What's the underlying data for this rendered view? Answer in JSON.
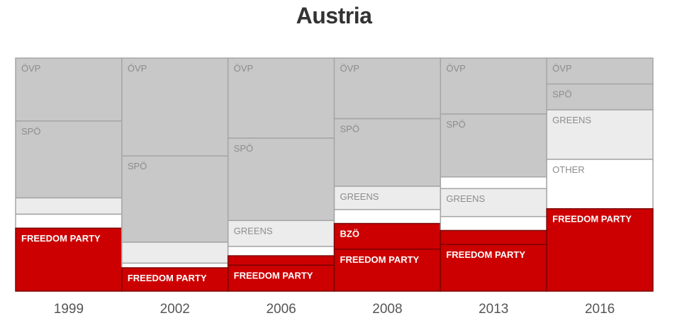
{
  "chart_data": {
    "type": "stacked-bar",
    "title": "Austria",
    "categories": [
      "1999",
      "2002",
      "2006",
      "2008",
      "2013",
      "2016"
    ],
    "columns": [
      {
        "year": "1999",
        "segments": [
          {
            "party": "ÖVP",
            "label": "ÖVP",
            "value": 27
          },
          {
            "party": "SPÖ",
            "label": "SPÖ",
            "value": 33
          },
          {
            "party": "GREENS",
            "label": "",
            "value": 7
          },
          {
            "party": "OTHER",
            "label": "",
            "value": 6
          },
          {
            "party": "FREEDOM PARTY",
            "label": "FREEDOM PARTY",
            "value": 27
          }
        ]
      },
      {
        "year": "2002",
        "segments": [
          {
            "party": "ÖVP",
            "label": "ÖVP",
            "value": 42
          },
          {
            "party": "SPÖ",
            "label": "SPÖ",
            "value": 37
          },
          {
            "party": "GREENS",
            "label": "",
            "value": 9
          },
          {
            "party": "OTHER",
            "label": "",
            "value": 2
          },
          {
            "party": "FREEDOM PARTY",
            "label": "FREEDOM PARTY",
            "value": 10
          }
        ]
      },
      {
        "year": "2006",
        "segments": [
          {
            "party": "ÖVP",
            "label": "ÖVP",
            "value": 34
          },
          {
            "party": "SPÖ",
            "label": "SPÖ",
            "value": 35
          },
          {
            "party": "GREENS",
            "label": "GREENS",
            "value": 11
          },
          {
            "party": "OTHER",
            "label": "",
            "value": 4
          },
          {
            "party": "BZÖ",
            "label": "",
            "value": 4
          },
          {
            "party": "FREEDOM PARTY",
            "label": "FREEDOM PARTY",
            "value": 11
          }
        ]
      },
      {
        "year": "2008",
        "segments": [
          {
            "party": "ÖVP",
            "label": "ÖVP",
            "value": 26
          },
          {
            "party": "SPÖ",
            "label": "SPÖ",
            "value": 29
          },
          {
            "party": "GREENS",
            "label": "GREENS",
            "value": 10
          },
          {
            "party": "OTHER",
            "label": "",
            "value": 6
          },
          {
            "party": "BZÖ",
            "label": "BZÖ",
            "value": 11
          },
          {
            "party": "FREEDOM PARTY",
            "label": "FREEDOM PARTY",
            "value": 18
          }
        ]
      },
      {
        "year": "2013",
        "segments": [
          {
            "party": "ÖVP",
            "label": "ÖVP",
            "value": 24
          },
          {
            "party": "SPÖ",
            "label": "SPÖ",
            "value": 27
          },
          {
            "party": "OTHER",
            "label": "",
            "value": 5
          },
          {
            "party": "GREENS",
            "label": "GREENS",
            "value": 12
          },
          {
            "party": "OTHER",
            "label": "",
            "value": 6
          },
          {
            "party": "BZÖ",
            "label": "",
            "value": 6
          },
          {
            "party": "FREEDOM PARTY",
            "label": "FREEDOM PARTY",
            "value": 20
          }
        ]
      },
      {
        "year": "2016",
        "segments": [
          {
            "party": "ÖVP",
            "label": "ÖVP",
            "value": 11
          },
          {
            "party": "SPÖ",
            "label": "SPÖ",
            "value": 11
          },
          {
            "party": "GREENS",
            "label": "GREENS",
            "value": 21
          },
          {
            "party": "OTHER",
            "label": "OTHER",
            "value": 21
          },
          {
            "party": "FREEDOM PARTY",
            "label": "FREEDOM PARTY",
            "value": 35
          }
        ]
      }
    ],
    "ylim": [
      0,
      100
    ],
    "grid": false,
    "legend": "none"
  },
  "colors": {
    "ÖVP": "#c8c8c8",
    "SPÖ": "#c8c8c8",
    "GREENS": "#ececec",
    "OTHER": "#ffffff",
    "BZÖ": "#cc0000",
    "FREEDOM PARTY": "#cc0000",
    "border_light": "#a6a6a6",
    "border_dark": "#7a0000",
    "label_light": "#8c8c8c",
    "label_dark": "#ffffff",
    "year_text": "#555555",
    "title_text": "#333333"
  }
}
